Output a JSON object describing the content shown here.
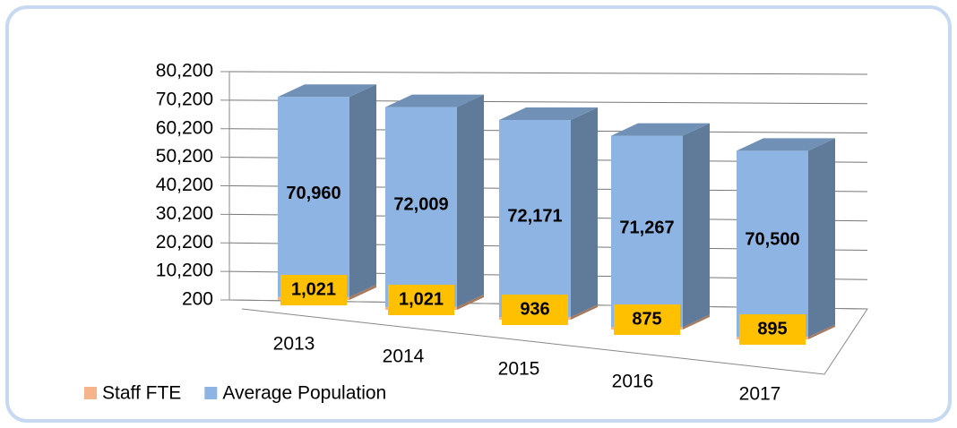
{
  "chart_data": {
    "type": "bar3d_stacked",
    "categories": [
      "2013",
      "2014",
      "2015",
      "2016",
      "2017"
    ],
    "series": [
      {
        "name": "Staff FTE",
        "color": "#f6b48a",
        "values": [
          1021,
          1021,
          936,
          875,
          895
        ],
        "value_labels": [
          "1,021",
          "1,021",
          "936",
          "875",
          "895"
        ]
      },
      {
        "name": "Average Population",
        "color": "#8db4e2",
        "values": [
          70960,
          72009,
          72171,
          71267,
          70500
        ],
        "value_labels": [
          "70,960",
          "72,009",
          "72,171",
          "71,267",
          "70,500"
        ]
      }
    ],
    "ylim": [
      200,
      80200
    ],
    "yticks": [
      200,
      {
        "value": 10200,
        "label": "10,200"
      },
      {
        "value": 20200,
        "label": "20,200"
      },
      {
        "value": 30200,
        "label": "30,200"
      },
      {
        "value": 40200,
        "label": "40,200"
      },
      {
        "value": 50200,
        "label": "50,200"
      },
      {
        "value": 60200,
        "label": "60,200"
      },
      {
        "value": 70200,
        "label": "70,200"
      },
      {
        "value": 80200,
        "label": "80,200"
      }
    ],
    "grid": true,
    "legend": "bottom-left"
  }
}
